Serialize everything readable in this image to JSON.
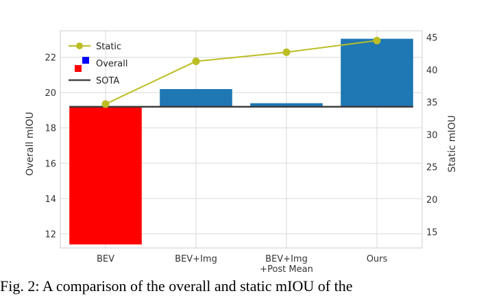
{
  "chart_data": {
    "type": "bar",
    "categories": [
      "BEV",
      "BEV+Img",
      "BEV+Img\n+Post Mean",
      "Ours"
    ],
    "ylabel": "Overall mIOU",
    "y2label": "Static mIOU",
    "ylim": [
      11.2,
      23.5
    ],
    "y2lim": [
      12.5,
      46
    ],
    "yticks": [
      12,
      14,
      16,
      18,
      20,
      22
    ],
    "y2ticks": [
      15,
      20,
      25,
      30,
      35,
      40,
      45
    ],
    "sota": 19.2,
    "series": [
      {
        "name": "Overall",
        "values": [
          11.4,
          20.2,
          19.4,
          23.05
        ],
        "colors": [
          "#ff0000",
          "#1f77b4",
          "#1f77b4",
          "#1f77b4"
        ]
      },
      {
        "name": "Static",
        "axis": "right",
        "values": [
          34.7,
          41.3,
          42.7,
          44.5
        ],
        "color": "#bcbd22"
      }
    ],
    "legend": {
      "position": "top-left",
      "entries": [
        {
          "label": "Static",
          "kind": "line-marker",
          "color": "#bcbd22"
        },
        {
          "label": "Overall",
          "kind": "patch",
          "colors": [
            "#ff0000",
            "#0000ff"
          ]
        },
        {
          "label": "SOTA",
          "kind": "line",
          "color": "#444444"
        }
      ]
    },
    "grid": true
  },
  "caption": "Fig. 2: A comparison of the overall and static mIOU of the"
}
